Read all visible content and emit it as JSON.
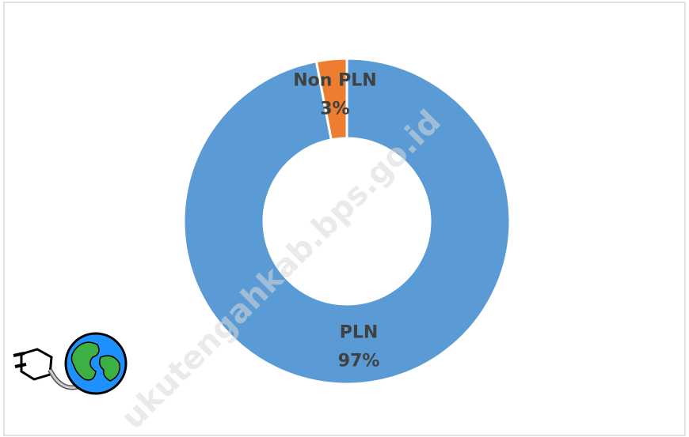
{
  "chart_data": {
    "type": "donut",
    "categories": [
      "PLN",
      "Non PLN"
    ],
    "values": [
      97,
      3
    ],
    "value_labels": [
      "97%",
      "3%"
    ],
    "colors": [
      "#5b9bd5",
      "#ed7d31"
    ],
    "watermark": "ukutengahkab.bps.go.id"
  }
}
